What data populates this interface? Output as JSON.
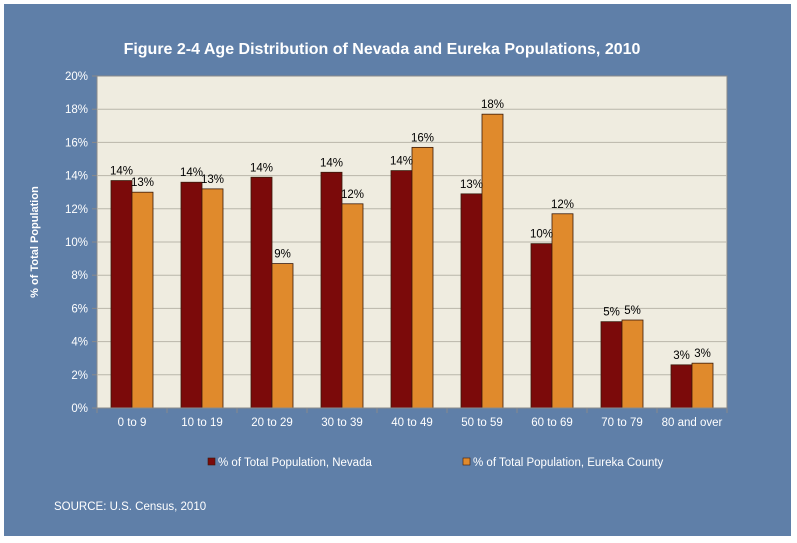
{
  "chart_data": {
    "type": "bar",
    "title": "Figure 2-4 Age Distribution of Nevada and Eureka Populations, 2010",
    "ylabel": "% of Total Population",
    "xlabel": "",
    "ylim": [
      0,
      20
    ],
    "yticks": [
      0,
      2,
      4,
      6,
      8,
      10,
      12,
      14,
      16,
      18,
      20
    ],
    "ytick_suffix": "%",
    "grid": true,
    "legend_position": "bottom",
    "categories": [
      "0 to 9",
      "10 to 19",
      "20 to 29",
      "30 to 39",
      "40 to 49",
      "50 to 59",
      "60 to 69",
      "70 to 79",
      "80 and over"
    ],
    "series": [
      {
        "name": "% of Total Population, Nevada",
        "color": "#7b0a0a",
        "values": [
          13.7,
          13.6,
          13.9,
          14.2,
          14.3,
          12.9,
          9.9,
          5.2,
          2.6
        ],
        "labels": [
          "14%",
          "14%",
          "14%",
          "14%",
          "14%",
          "13%",
          "10%",
          "5%",
          "3%"
        ]
      },
      {
        "name": "% of Total Population, Eureka County",
        "color": "#e08a2c",
        "values": [
          13.0,
          13.2,
          8.7,
          12.3,
          15.7,
          17.7,
          11.7,
          5.3,
          2.7
        ],
        "labels": [
          "13%",
          "13%",
          "9%",
          "12%",
          "16%",
          "18%",
          "12%",
          "5%",
          "3%"
        ]
      }
    ],
    "source": "SOURCE: U.S. Census, 2010",
    "colors": {
      "frame_background": "#5f7fa8",
      "plot_background": "#efece0",
      "gridline": "#b9b6aa",
      "title_text": "#ffffff",
      "axis_text": "#ffffff",
      "data_label_text": "#000000"
    }
  }
}
